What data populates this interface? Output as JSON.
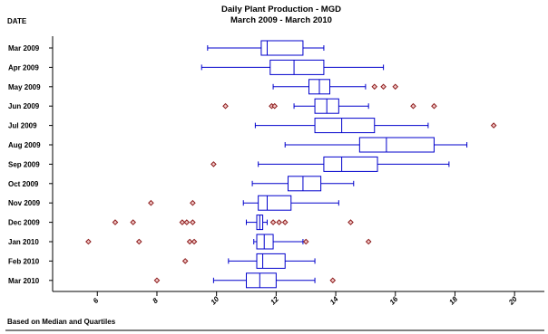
{
  "chart_data": {
    "type": "boxplot",
    "title": "Daily Plant Production - MGD",
    "subtitle": "March 2009 - March 2010",
    "ylabel": "DATE",
    "footnote": "Based on Median and Quartiles",
    "xlim": [
      4.5,
      21
    ],
    "xticks": [
      6,
      8,
      10,
      12,
      14,
      16,
      18,
      20
    ],
    "grid": false,
    "colors": {
      "box": "#0000cc",
      "outlier": "#8b1a1a"
    },
    "categories": [
      "Mar 2009",
      "Apr 2009",
      "May 2009",
      "Jun 2009",
      "Jul 2009",
      "Aug 2009",
      "Sep 2009",
      "Oct 2009",
      "Nov 2009",
      "Dec 2009",
      "Jan 2010",
      "Feb 2010",
      "Mar 2010"
    ],
    "boxes": [
      {
        "whisker_low": 9.7,
        "q1": 11.5,
        "median": 11.7,
        "q3": 12.9,
        "whisker_high": 13.6,
        "outliers": []
      },
      {
        "whisker_low": 9.5,
        "q1": 11.8,
        "median": 12.6,
        "q3": 13.6,
        "whisker_high": 15.6,
        "outliers": []
      },
      {
        "whisker_low": 11.9,
        "q1": 13.1,
        "median": 13.45,
        "q3": 13.8,
        "whisker_high": 15.0,
        "outliers": [
          15.3,
          15.6,
          16.0
        ]
      },
      {
        "whisker_low": 12.6,
        "q1": 13.3,
        "median": 13.7,
        "q3": 14.1,
        "whisker_high": 15.1,
        "outliers": [
          10.3,
          11.85,
          11.95,
          16.6,
          17.3
        ]
      },
      {
        "whisker_low": 11.3,
        "q1": 13.3,
        "median": 14.2,
        "q3": 15.3,
        "whisker_high": 17.1,
        "outliers": [
          19.3
        ]
      },
      {
        "whisker_low": 12.3,
        "q1": 14.8,
        "median": 15.7,
        "q3": 17.3,
        "whisker_high": 18.4,
        "outliers": []
      },
      {
        "whisker_low": 11.4,
        "q1": 13.6,
        "median": 14.2,
        "q3": 15.4,
        "whisker_high": 17.8,
        "outliers": [
          9.9
        ]
      },
      {
        "whisker_low": 11.2,
        "q1": 12.4,
        "median": 12.9,
        "q3": 13.5,
        "whisker_high": 14.6,
        "outliers": []
      },
      {
        "whisker_low": 10.9,
        "q1": 11.4,
        "median": 11.7,
        "q3": 12.5,
        "whisker_high": 14.1,
        "outliers": [
          7.8,
          9.2
        ]
      },
      {
        "whisker_low": 11.0,
        "q1": 11.35,
        "median": 11.45,
        "q3": 11.55,
        "whisker_high": 11.7,
        "outliers": [
          6.6,
          7.2,
          8.85,
          9.0,
          9.2,
          11.9,
          12.1,
          12.3,
          14.5
        ]
      },
      {
        "whisker_low": 11.25,
        "q1": 11.35,
        "median": 11.6,
        "q3": 11.9,
        "whisker_high": 12.9,
        "outliers": [
          5.7,
          7.4,
          9.1,
          9.25,
          13.0,
          15.1
        ]
      },
      {
        "whisker_low": 10.4,
        "q1": 11.35,
        "median": 11.55,
        "q3": 12.3,
        "whisker_high": 13.3,
        "outliers": [
          8.95
        ]
      },
      {
        "whisker_low": 9.9,
        "q1": 11.0,
        "median": 11.45,
        "q3": 12.0,
        "whisker_high": 13.3,
        "outliers": [
          8.0,
          13.9
        ]
      }
    ]
  }
}
